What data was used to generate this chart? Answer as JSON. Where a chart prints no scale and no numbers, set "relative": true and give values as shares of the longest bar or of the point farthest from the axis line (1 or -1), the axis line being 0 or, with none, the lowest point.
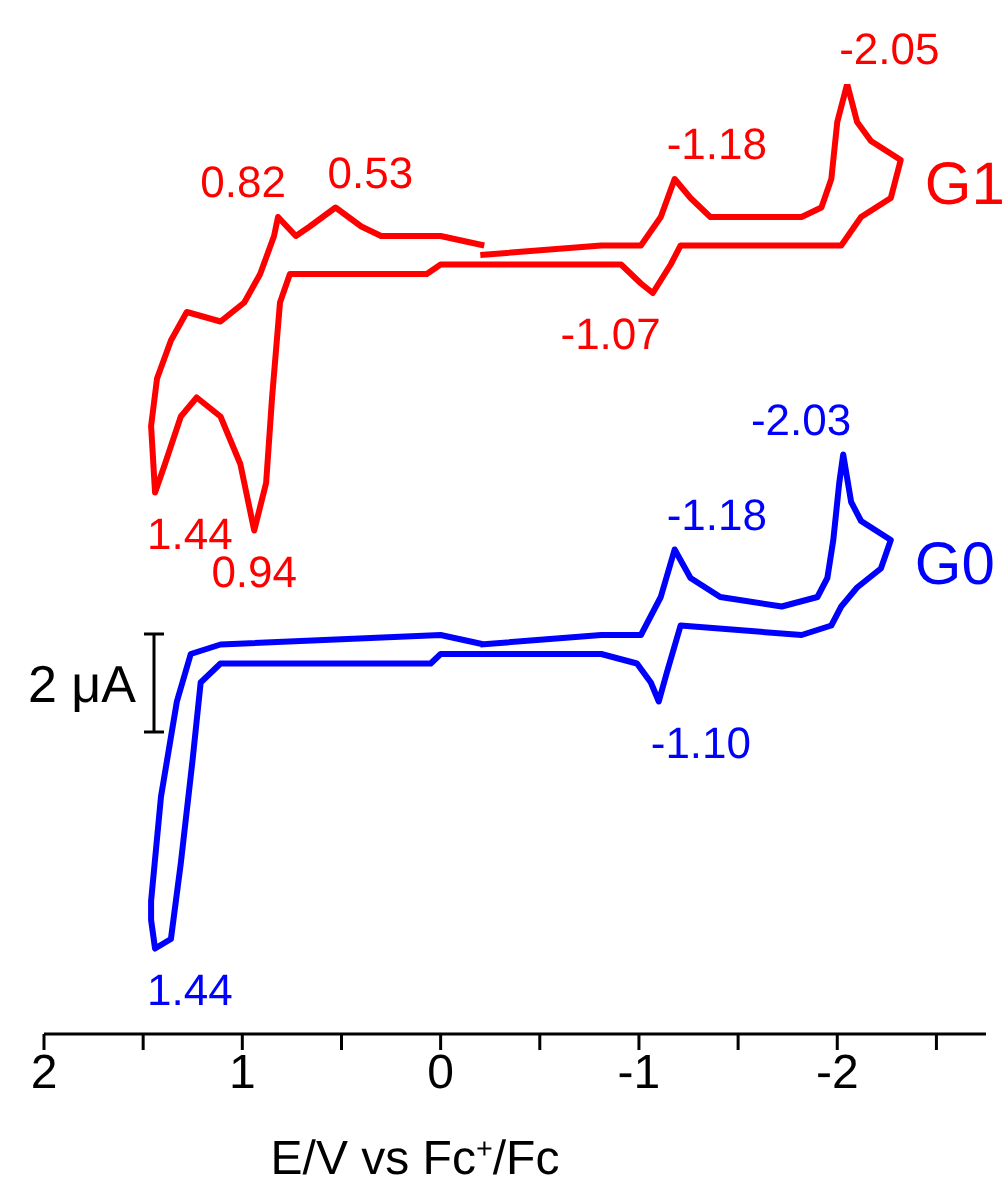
{
  "chart_data": {
    "type": "line",
    "relative": true,
    "xlabel": "E/V vs Fc$^{+}$/Fc",
    "xlim": [
      2,
      -2.75
    ],
    "xticks": [
      2,
      {
        "value": 1.5,
        "label": null
      },
      1,
      {
        "value": 0.5,
        "label": null
      },
      0,
      {
        "value": -0.5,
        "label": null
      },
      {
        "value": -1,
        "label": "-1"
      },
      {
        "value": -1.5,
        "label": null
      },
      {
        "value": -2,
        "label": "-2"
      },
      {
        "value": -2.5,
        "label": null
      }
    ],
    "marker": "none",
    "series": [
      {
        "name": "G1",
        "color": "#ff0000",
        "x": [
          -0.2,
          -0.81,
          -1.01,
          -1.11,
          -1.18,
          -1.26,
          -1.36,
          -1.52,
          -1.82,
          -1.92,
          -1.97,
          -2.0,
          -2.05,
          -2.1,
          -2.17,
          -2.32,
          -2.27,
          -2.12,
          -2.02,
          -1.97,
          -1.82,
          -1.21,
          -1.16,
          -1.07,
          -1.01,
          -0.91,
          -0.71,
          0,
          0.07,
          0.2,
          0.56,
          0.76,
          0.81,
          0.85,
          0.88,
          0.94,
          1.01,
          1.11,
          1.23,
          1.31,
          1.39,
          1.44,
          1.46,
          1.43,
          1.36,
          1.28,
          1.11,
          0.99,
          0.91,
          0.84,
          0.82,
          0.73,
          0.66,
          0.53,
          0.4,
          0.3,
          0,
          -0.22
        ],
        "values": [
          0.82,
          0.83,
          0.83,
          0.86,
          0.9,
          0.88,
          0.86,
          0.86,
          0.86,
          0.87,
          0.9,
          0.96,
          1.0,
          0.96,
          0.94,
          0.92,
          0.88,
          0.86,
          0.83,
          0.83,
          0.83,
          0.83,
          0.81,
          0.78,
          0.79,
          0.81,
          0.81,
          0.81,
          0.8,
          0.8,
          0.8,
          0.8,
          0.77,
          0.67,
          0.58,
          0.53,
          0.6,
          0.65,
          0.67,
          0.65,
          0.6,
          0.57,
          0.64,
          0.69,
          0.73,
          0.76,
          0.75,
          0.77,
          0.8,
          0.84,
          0.86,
          0.84,
          0.85,
          0.87,
          0.85,
          0.84,
          0.84,
          0.83
        ]
      },
      {
        "name": "G0",
        "color": "#0000ff",
        "x": [
          -0.2,
          -0.81,
          -1.01,
          -1.11,
          -1.18,
          -1.26,
          -1.41,
          -1.72,
          -1.9,
          -1.95,
          -1.98,
          -2.01,
          -2.03,
          -2.07,
          -2.12,
          -2.27,
          -2.22,
          -2.1,
          -2.02,
          -1.97,
          -1.82,
          -1.21,
          -1.14,
          -1.1,
          -1.06,
          -0.99,
          -0.81,
          0,
          0.05,
          0.1,
          1.11,
          1.21,
          1.25,
          1.31,
          1.36,
          1.44,
          1.46,
          1.46,
          1.41,
          1.33,
          1.26,
          1.11,
          0,
          -0.22
        ],
        "values": [
          0.41,
          0.42,
          0.42,
          0.46,
          0.51,
          0.48,
          0.46,
          0.45,
          0.46,
          0.48,
          0.52,
          0.58,
          0.61,
          0.56,
          0.54,
          0.52,
          0.49,
          0.47,
          0.45,
          0.43,
          0.42,
          0.43,
          0.38,
          0.35,
          0.37,
          0.39,
          0.4,
          0.4,
          0.39,
          0.39,
          0.39,
          0.37,
          0.29,
          0.18,
          0.1,
          0.09,
          0.12,
          0.14,
          0.25,
          0.35,
          0.4,
          0.41,
          0.42,
          0.41
        ]
      }
    ],
    "annotations": [
      {
        "text": "-2.05",
        "x": -2.05,
        "y": 1.0
      },
      {
        "text": "-1.18",
        "x": -1.18,
        "y": 0.9
      },
      {
        "text": "0.82",
        "x": 0.82,
        "y": 0.86
      },
      {
        "text": "0.53",
        "x": 0.53,
        "y": 0.87
      },
      {
        "text": "-1.07",
        "x": -1.07,
        "y": 0.78
      },
      {
        "text": "1.44",
        "x": 1.44,
        "y": 0.57
      },
      {
        "text": "0.94",
        "x": 0.94,
        "y": 0.53
      },
      {
        "text": "-2.03",
        "x": -2.03,
        "y": 0.61
      },
      {
        "text": "-1.18",
        "x": -1.18,
        "y": 0.51
      },
      {
        "text": "-1.10",
        "x": -1.1,
        "y": 0.35
      },
      {
        "text": "1.44",
        "x": 1.44,
        "y": 0.09
      },
      "2 μA"
    ]
  }
}
